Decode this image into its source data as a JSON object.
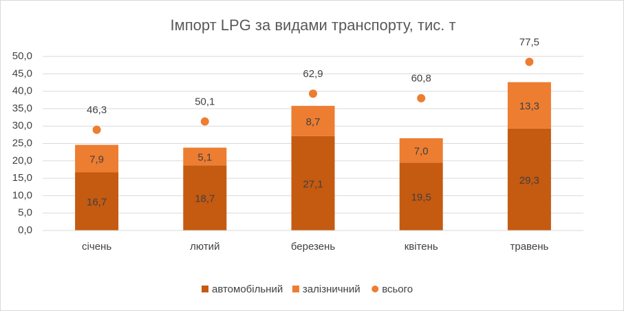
{
  "chart_data": {
    "type": "bar",
    "stacked": true,
    "title": "Імпорт LPG за видами транспорту, тис. т",
    "categories": [
      "січень",
      "лютий",
      "березень",
      "квітень",
      "травень"
    ],
    "series": [
      {
        "name": "автомобільний",
        "type": "bar",
        "color": "#c55a11",
        "values": [
          16.7,
          18.7,
          27.1,
          19.5,
          29.3
        ],
        "value_labels": [
          "16,7",
          "18,7",
          "27,1",
          "19,5",
          "29,3"
        ]
      },
      {
        "name": "залізничний",
        "type": "bar",
        "color": "#ed7d31",
        "values": [
          7.9,
          5.1,
          8.7,
          7.0,
          13.3
        ],
        "value_labels": [
          "7,9",
          "5,1",
          "8,7",
          "7,0",
          "13,3"
        ]
      },
      {
        "name": "всього",
        "type": "scatter",
        "axis": "y2",
        "color": "#ed7d31",
        "values": [
          46.3,
          50.1,
          62.9,
          60.8,
          77.5
        ],
        "value_labels": [
          "46,3",
          "50,1",
          "62,9",
          "60,8",
          "77,5"
        ]
      }
    ],
    "ylim": [
      0,
      50
    ],
    "yticks": [
      {
        "value": 0,
        "label": "0,0"
      },
      {
        "value": 5,
        "label": "5,0"
      },
      {
        "value": 10,
        "label": "10,0"
      },
      {
        "value": 15,
        "label": "15,0"
      },
      {
        "value": 20,
        "label": "20,0"
      },
      {
        "value": 25,
        "label": "25,0"
      },
      {
        "value": 30,
        "label": "30,0"
      },
      {
        "value": 35,
        "label": "35,0"
      },
      {
        "value": 40,
        "label": "40,0"
      },
      {
        "value": 45,
        "label": "45,0"
      },
      {
        "value": 50,
        "label": "50,0"
      }
    ],
    "y2lim": [
      0,
      80
    ],
    "grid": true,
    "legend": "bottom"
  }
}
